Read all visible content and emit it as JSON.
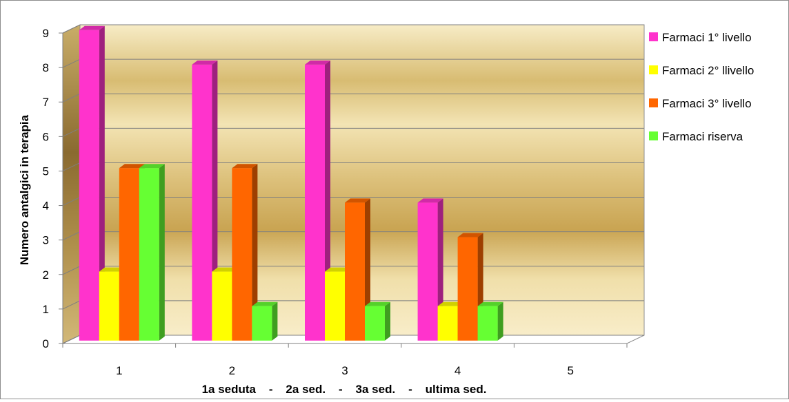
{
  "chart_data": {
    "type": "bar",
    "categories": [
      "1",
      "2",
      "3",
      "4",
      "5"
    ],
    "series": [
      {
        "name": "Farmaci 1° livello",
        "values": [
          9,
          8,
          8,
          4,
          null
        ],
        "color": "#ff33cc"
      },
      {
        "name": "Farmaci 2° llivello",
        "values": [
          2,
          2,
          2,
          1,
          null
        ],
        "color": "#ffff00"
      },
      {
        "name": "Farmaci 3° livello",
        "values": [
          5,
          5,
          4,
          3,
          null
        ],
        "color": "#ff6600"
      },
      {
        "name": "Farmaci riserva",
        "values": [
          5,
          1,
          1,
          1,
          null
        ],
        "color": "#66ff33"
      }
    ],
    "y_ticks": [
      "0",
      "1",
      "2",
      "3",
      "4",
      "5",
      "6",
      "7",
      "8",
      "9"
    ],
    "ylim": [
      0,
      9
    ],
    "title": "",
    "xlabel": "1a seduta    -    2a sed.    -    3a sed.    -    ultima sed.",
    "ylabel": "Numero antalgici in terapia",
    "grid": true,
    "legend_position": "right",
    "style": "3d-clustered-column"
  }
}
